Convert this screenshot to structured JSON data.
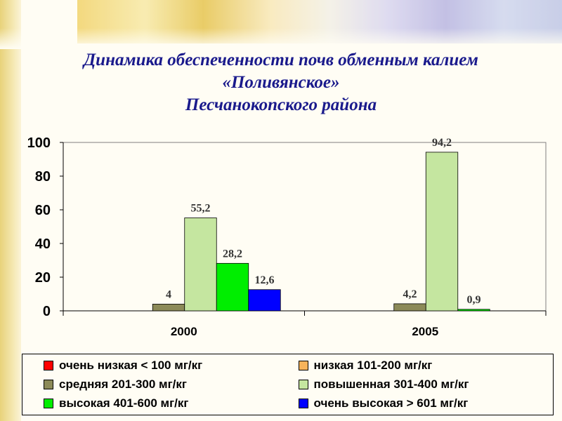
{
  "title_lines": [
    "Динамика обеспеченности почв обменным калием",
    "«Поливянское»",
    "Песчанокопского  района"
  ],
  "chart_data": {
    "type": "bar",
    "title": "Динамика обеспеченности почв обменным калием «Поливянское» Песчанокопского  района",
    "categories": [
      "2000",
      "2005"
    ],
    "ylim": [
      0,
      100
    ],
    "yticks": [
      "0",
      "20",
      "40",
      "60",
      "80",
      "100"
    ],
    "series": [
      {
        "name": "очень низкая < 100 мг/кг",
        "color": "#ff0000",
        "values": [
          null,
          null
        ],
        "labels": [
          "",
          ""
        ]
      },
      {
        "name": "низкая 101-200 мг/кг",
        "color": "#f7b35b",
        "values": [
          null,
          null
        ],
        "labels": [
          "",
          ""
        ]
      },
      {
        "name": "средняя 201-300 мг/кг",
        "color": "#8c8a58",
        "values": [
          4,
          4.2
        ],
        "labels": [
          "4",
          "4,2"
        ]
      },
      {
        "name": "повышенная 301-400 мг/кг",
        "color": "#c5e6a0",
        "values": [
          55.2,
          94.2
        ],
        "labels": [
          "55,2",
          "94,2"
        ]
      },
      {
        "name": "высокая 401-600 мг/кг",
        "color": "#00ee00",
        "values": [
          28.2,
          0.9
        ],
        "labels": [
          "28,2",
          "0,9"
        ]
      },
      {
        "name": "очень высокая > 601 мг/кг",
        "color": "#0000ff",
        "values": [
          12.6,
          null
        ],
        "labels": [
          "12,6",
          ""
        ]
      }
    ],
    "legend_position": "bottom",
    "grid": false
  }
}
